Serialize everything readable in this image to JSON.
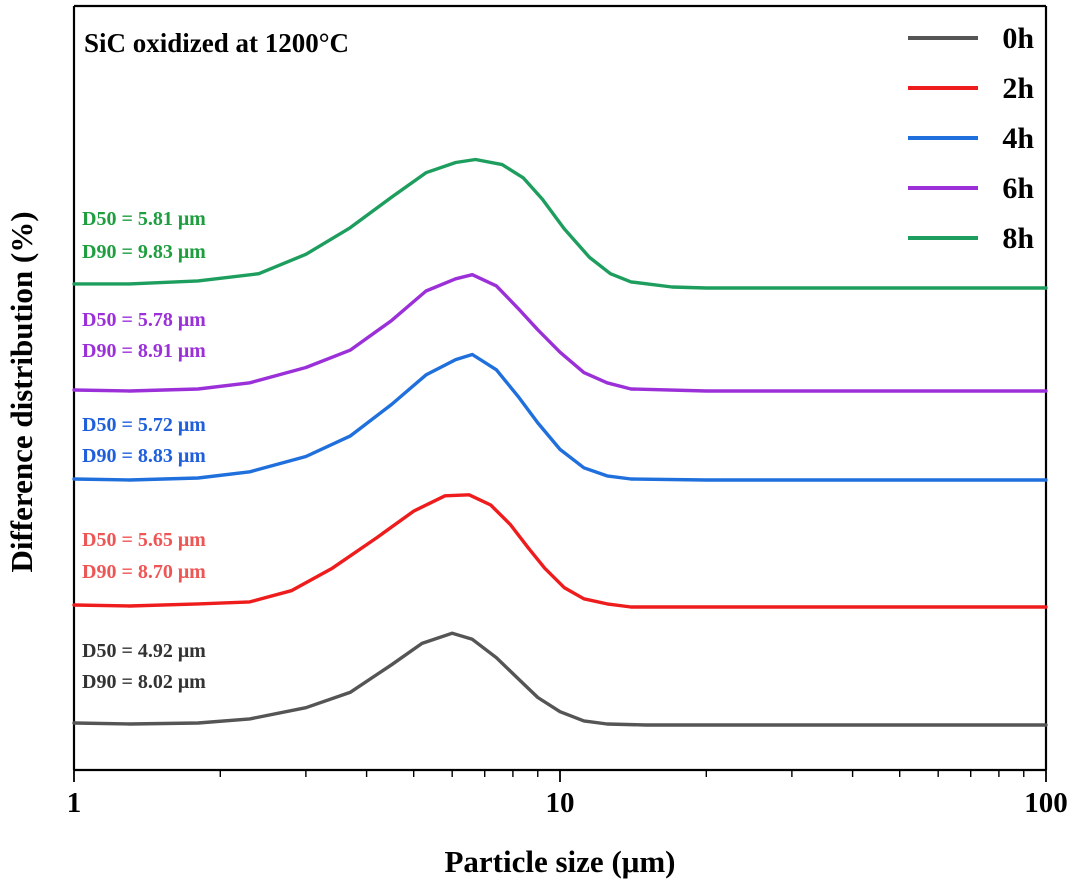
{
  "chart_data": {
    "type": "line",
    "title": "SiC oxidized at 1200°C",
    "xlabel": "Particle size (μm)",
    "ylabel": "Difference distribution (%)",
    "x_scale": "log",
    "xlim": [
      1,
      100
    ],
    "x_ticks": [
      "1",
      "10",
      "100"
    ],
    "y_ticks_shown": false,
    "legend_position": "top-right",
    "series": [
      {
        "name": "0h",
        "color": "#555555",
        "annotation": [
          "D50 = 4.92 μm",
          "D90 = 8.02 μm"
        ],
        "points": [
          [
            1.0,
            0.2
          ],
          [
            1.3,
            0.1
          ],
          [
            1.8,
            0.2
          ],
          [
            2.3,
            0.6
          ],
          [
            3.0,
            1.7
          ],
          [
            3.7,
            3.2
          ],
          [
            4.5,
            5.9
          ],
          [
            5.2,
            8.0
          ],
          [
            6.0,
            9.0
          ],
          [
            6.6,
            8.4
          ],
          [
            7.4,
            6.6
          ],
          [
            8.3,
            4.3
          ],
          [
            9.0,
            2.7
          ],
          [
            10.0,
            1.3
          ],
          [
            11.2,
            0.4
          ],
          [
            12.5,
            0.1
          ],
          [
            15,
            0.0
          ],
          [
            20,
            0.0
          ],
          [
            40,
            0.0
          ],
          [
            100,
            0.0
          ]
        ]
      },
      {
        "name": "2h",
        "color": "#ee1c1c",
        "annotation": [
          "D50 = 5.65 μm",
          "D90 = 8.70 μm"
        ],
        "points": [
          [
            1.0,
            0.2
          ],
          [
            1.3,
            0.1
          ],
          [
            1.8,
            0.3
          ],
          [
            2.3,
            0.5
          ],
          [
            2.8,
            1.6
          ],
          [
            3.4,
            3.8
          ],
          [
            4.2,
            6.8
          ],
          [
            5.0,
            9.4
          ],
          [
            5.8,
            10.9
          ],
          [
            6.5,
            11.0
          ],
          [
            7.2,
            10.0
          ],
          [
            7.9,
            8.1
          ],
          [
            8.6,
            5.8
          ],
          [
            9.3,
            3.8
          ],
          [
            10.2,
            1.9
          ],
          [
            11.2,
            0.8
          ],
          [
            12.5,
            0.3
          ],
          [
            14,
            0.0
          ],
          [
            20,
            0.0
          ],
          [
            100,
            0.0
          ]
        ]
      },
      {
        "name": "4h",
        "color": "#1f6fdc",
        "annotation": [
          "D50 = 5.72 μm",
          "D90 = 8.83 μm"
        ],
        "points": [
          [
            1.0,
            0.1
          ],
          [
            1.3,
            0.0
          ],
          [
            1.8,
            0.2
          ],
          [
            2.3,
            0.8
          ],
          [
            3.0,
            2.3
          ],
          [
            3.7,
            4.3
          ],
          [
            4.5,
            7.4
          ],
          [
            5.3,
            10.3
          ],
          [
            6.1,
            11.8
          ],
          [
            6.6,
            12.3
          ],
          [
            7.4,
            10.8
          ],
          [
            8.2,
            8.2
          ],
          [
            9.0,
            5.6
          ],
          [
            10.0,
            3.0
          ],
          [
            11.2,
            1.2
          ],
          [
            12.5,
            0.4
          ],
          [
            14,
            0.1
          ],
          [
            20,
            0.0
          ],
          [
            100,
            0.0
          ]
        ]
      },
      {
        "name": "6h",
        "color": "#9b30d9",
        "annotation": [
          "D50 = 5.78 μm",
          "D90 = 8.91 μm"
        ],
        "points": [
          [
            1.0,
            0.1
          ],
          [
            1.3,
            0.0
          ],
          [
            1.8,
            0.2
          ],
          [
            2.3,
            0.8
          ],
          [
            3.0,
            2.3
          ],
          [
            3.7,
            4.0
          ],
          [
            4.5,
            6.9
          ],
          [
            5.3,
            9.8
          ],
          [
            6.1,
            11.0
          ],
          [
            6.6,
            11.4
          ],
          [
            7.4,
            10.3
          ],
          [
            8.2,
            8.1
          ],
          [
            9.0,
            6.0
          ],
          [
            10.0,
            3.8
          ],
          [
            11.2,
            1.8
          ],
          [
            12.5,
            0.8
          ],
          [
            14,
            0.2
          ],
          [
            20,
            0.0
          ],
          [
            100,
            0.0
          ]
        ]
      },
      {
        "name": "8h",
        "color": "#1e9e5e",
        "annotation": [
          "D50 = 5.81 μm",
          "D90 = 9.83 μm"
        ],
        "points": [
          [
            1.0,
            0.4
          ],
          [
            1.3,
            0.4
          ],
          [
            1.8,
            0.7
          ],
          [
            2.4,
            1.4
          ],
          [
            3.0,
            3.3
          ],
          [
            3.7,
            5.9
          ],
          [
            4.5,
            8.9
          ],
          [
            5.3,
            11.3
          ],
          [
            6.1,
            12.3
          ],
          [
            6.7,
            12.6
          ],
          [
            7.6,
            12.1
          ],
          [
            8.4,
            10.8
          ],
          [
            9.2,
            8.7
          ],
          [
            10.2,
            5.8
          ],
          [
            11.5,
            3.0
          ],
          [
            12.7,
            1.4
          ],
          [
            14,
            0.6
          ],
          [
            17,
            0.1
          ],
          [
            20,
            0.0
          ],
          [
            100,
            0.0
          ]
        ]
      }
    ]
  }
}
